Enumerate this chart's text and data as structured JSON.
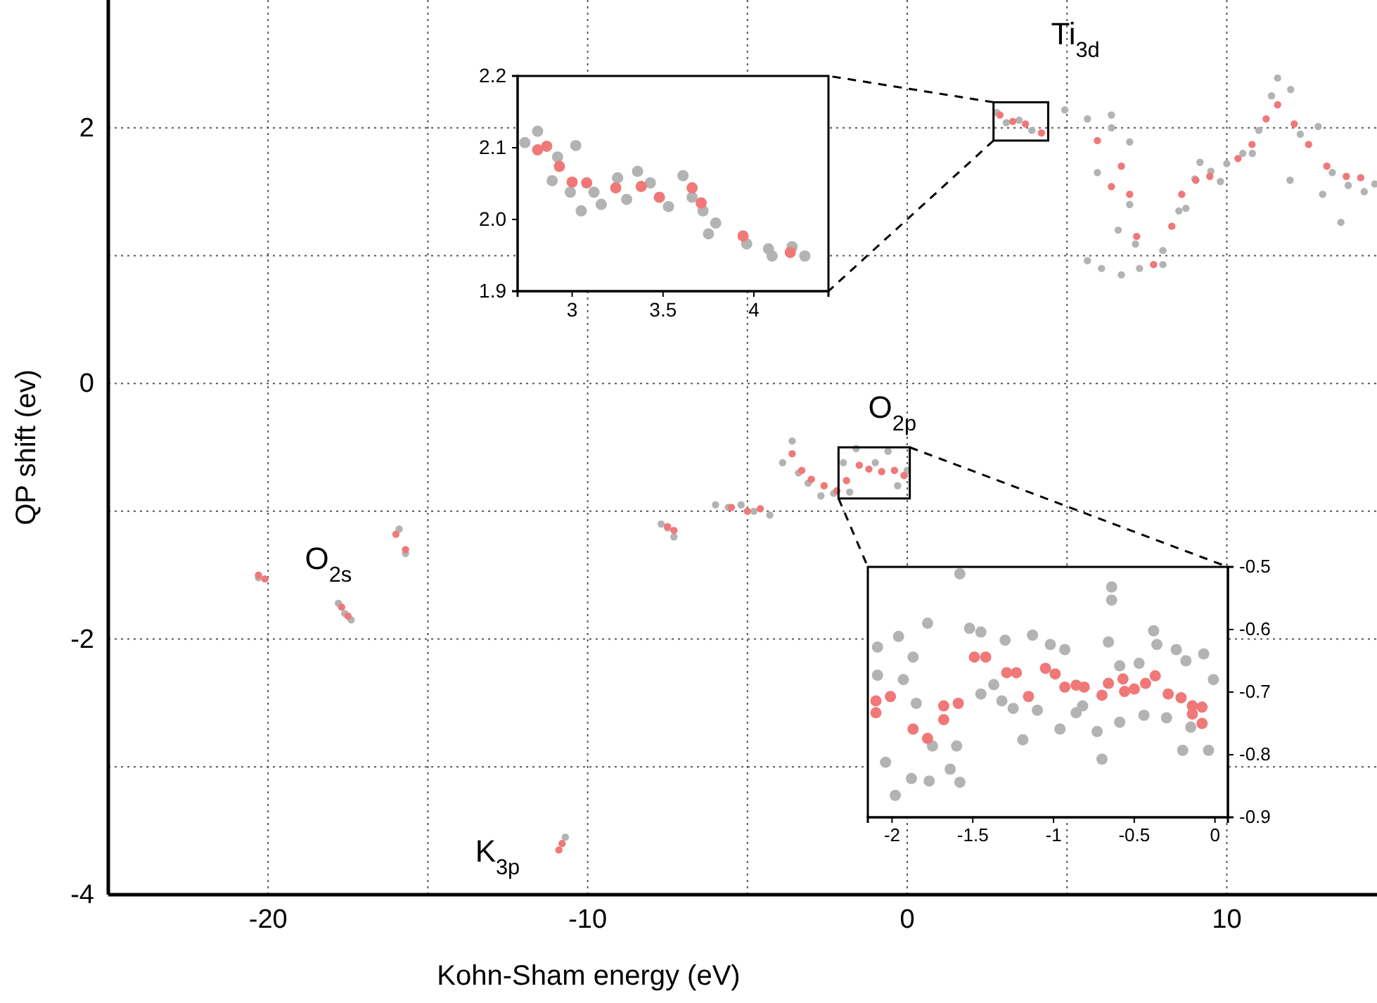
{
  "chart_data": [
    {
      "type": "scatter",
      "xlabel": "Kohn-Sham energy (eV)",
      "ylabel": "QP shift (ev)",
      "xlim": [
        -25,
        14.7
      ],
      "ylim": [
        -4,
        3
      ],
      "xticks": [
        -20,
        {
          "value": -15,
          "label": null
        },
        -10,
        {
          "value": -5,
          "label": null
        },
        0,
        {
          "value": 5,
          "label": null
        },
        10
      ],
      "yticks": [
        -4,
        {
          "value": -3,
          "label": null
        },
        -2,
        {
          "value": -1,
          "label": null
        },
        0,
        {
          "value": 1,
          "label": null
        },
        2
      ],
      "grid": true,
      "marker": "circle",
      "annotations": [
        {
          "text": "O$_{2s}$",
          "x": -17.6,
          "y": -1.78
        },
        {
          "text": "K$_{3p}$",
          "x": -10.8,
          "y": -3.63
        },
        {
          "text": "O$_{2p}$",
          "x": -1.0,
          "y": -0.6
        },
        {
          "text": "Ti$_{3d}$",
          "x": 3.5,
          "y": 2.05
        }
      ],
      "series": [
        {
          "color": "#b3b3b3",
          "x": [
            -20.3,
            -17.8,
            -17.6,
            -17.4,
            -15.9,
            -15.7,
            -10.7,
            -7.7,
            -7.5,
            -7.3,
            -6.0,
            -5.6,
            -5.2,
            -4.8,
            -4.3,
            -3.9,
            -3.6,
            -3.4,
            -3.1,
            -2.7,
            -2.3,
            -2.0,
            -1.8,
            -1.6,
            -1.0,
            -0.6,
            -0.3,
            0.0,
            2.8,
            3.1,
            3.5,
            3.9,
            4.93,
            5.64,
            6.39,
            6.96,
            6.96,
            6.6,
            7.14,
            5.64,
            6.08,
            6.7,
            7.27,
            8.0,
            8.5,
            9.0,
            9.5,
            10.0,
            10.5,
            11.0,
            11.59,
            11.4,
            12.3,
            12.86,
            13.3,
            13.8,
            14.3,
            14.63,
            13.57,
            13.0,
            11.98,
            9.16,
            8.72,
            8.0,
            5.95,
            6.39,
            9.8,
            10.8,
            12.0
          ],
          "values": [
            -1.52,
            -1.72,
            -1.8,
            -1.85,
            -1.14,
            -1.33,
            -3.55,
            -1.1,
            -1.13,
            -1.2,
            -0.95,
            -0.97,
            -0.95,
            -1.0,
            -1.03,
            -0.62,
            -0.45,
            -0.7,
            -0.78,
            -0.88,
            -0.86,
            -0.62,
            -0.85,
            -0.51,
            -0.62,
            -0.53,
            -0.8,
            -0.68,
            2.12,
            2.04,
            2.06,
            1.98,
            2.14,
            2.07,
            2.0,
            1.89,
            1.4,
            1.2,
            1.09,
            0.96,
            0.9,
            0.85,
            0.9,
            1.04,
            1.35,
            1.6,
            1.66,
            1.72,
            1.8,
            1.98,
            2.39,
            2.25,
            1.95,
            2.01,
            1.65,
            1.55,
            1.5,
            1.56,
            1.26,
            1.48,
            1.59,
            1.73,
            1.37,
            0.93,
            1.65,
            2.1,
            1.58,
            1.8,
            2.3
          ]
        },
        {
          "color": "#f07878",
          "x": [
            -20.3,
            -20.1,
            -17.7,
            -17.5,
            -16.0,
            -15.7,
            -10.9,
            -10.8,
            -7.5,
            -7.3,
            -5.5,
            -5.0,
            -4.6,
            -3.6,
            -3.3,
            -3.0,
            -2.6,
            -2.2,
            -1.9,
            -1.5,
            -1.2,
            -0.8,
            -0.4,
            -0.1,
            2.9,
            3.3,
            3.7,
            4.2,
            5.95,
            6.7,
            6.39,
            6.96,
            7.18,
            7.71,
            8.28,
            8.59,
            9.03,
            9.47,
            10.35,
            10.79,
            11.23,
            11.59,
            12.11,
            12.56,
            13.13,
            13.74,
            14.19
          ],
          "values": [
            -1.5,
            -1.53,
            -1.75,
            -1.82,
            -1.18,
            -1.3,
            -3.65,
            -3.6,
            -1.12,
            -1.15,
            -0.97,
            -1.0,
            -0.98,
            -0.55,
            -0.68,
            -0.75,
            -0.8,
            -0.84,
            -0.76,
            -0.64,
            -0.67,
            -0.69,
            -0.68,
            -0.72,
            2.1,
            2.05,
            2.03,
            1.96,
            1.9,
            1.7,
            1.54,
            1.48,
            1.15,
            0.93,
            1.23,
            1.48,
            1.59,
            1.62,
            1.76,
            1.87,
            2.07,
            2.18,
            2.03,
            1.87,
            1.7,
            1.62,
            1.61
          ]
        }
      ]
    },
    {
      "type": "scatter",
      "xlim": [
        2.7,
        4.41
      ],
      "ylim": [
        1.9,
        2.2
      ],
      "xticks": [
        3,
        3.5,
        4
      ],
      "yticks": [
        1.9,
        {
          "value": 2.0,
          "label": "2.0"
        },
        2.1,
        2.2
      ],
      "marker": "circle",
      "series": [
        {
          "color": "#b3b3b3",
          "x": [
            2.74,
            2.81,
            2.92,
            2.99,
            3.02,
            3.05,
            3.12,
            3.16,
            2.89,
            3.25,
            3.36,
            3.3,
            3.43,
            3.53,
            3.61,
            3.66,
            3.72,
            3.79,
            3.75,
            3.96,
            4.08,
            4.21,
            4.28,
            4.1
          ],
          "values": [
            2.107,
            2.123,
            2.087,
            2.038,
            2.103,
            2.012,
            2.038,
            2.021,
            2.054,
            2.058,
            2.067,
            2.028,
            2.051,
            2.018,
            2.061,
            2.031,
            2.012,
            1.995,
            1.98,
            1.966,
            1.959,
            1.962,
            1.949,
            1.949
          ]
        },
        {
          "color": "#f07878",
          "x": [
            2.81,
            2.86,
            2.93,
            3.0,
            3.08,
            3.24,
            3.38,
            3.48,
            3.66,
            3.71,
            3.94,
            4.2
          ],
          "values": [
            2.097,
            2.102,
            2.074,
            2.052,
            2.051,
            2.044,
            2.046,
            2.031,
            2.044,
            2.023,
            1.977,
            1.954
          ]
        }
      ]
    },
    {
      "type": "scatter",
      "xlim": [
        -2.15,
        0.08
      ],
      "ylim": [
        -0.9,
        -0.5
      ],
      "xticks": [
        -2,
        -1.5,
        -1,
        -0.5,
        0
      ],
      "yticks": [
        -0.9,
        -0.8,
        -0.7,
        -0.6,
        -0.5
      ],
      "marker": "circle",
      "series": [
        {
          "color": "#b3b3b3",
          "x": [
            -1.58,
            -0.64,
            -1.78,
            -1.96,
            -2.09,
            -2.09,
            -1.93,
            -1.87,
            -2.04,
            -1.98,
            -1.88,
            -1.77,
            -1.64,
            -1.58,
            -1.85,
            -1.75,
            -1.6,
            -1.52,
            -1.45,
            -1.3,
            -1.13,
            -1.02,
            -0.93,
            -1.19,
            -1.25,
            -1.1,
            -0.96,
            -0.86,
            -0.73,
            -0.7,
            -0.64,
            -0.66,
            -0.59,
            -0.47,
            -0.38,
            -0.36,
            -0.24,
            -0.18,
            -0.07,
            -0.01,
            -0.04,
            -0.2,
            -0.15,
            -0.3,
            -0.44,
            -0.59,
            -0.82,
            -1.37,
            -1.45,
            -1.32
          ],
          "values": [
            -0.511,
            -0.532,
            -0.59,
            -0.611,
            -0.628,
            -0.673,
            -0.68,
            -0.644,
            -0.812,
            -0.865,
            -0.838,
            -0.842,
            -0.823,
            -0.844,
            -0.718,
            -0.786,
            -0.786,
            -0.598,
            -0.604,
            -0.617,
            -0.609,
            -0.624,
            -0.632,
            -0.776,
            -0.726,
            -0.729,
            -0.759,
            -0.733,
            -0.763,
            -0.807,
            -0.553,
            -0.62,
            -0.658,
            -0.654,
            -0.602,
            -0.624,
            -0.632,
            -0.65,
            -0.639,
            -0.68,
            -0.793,
            -0.793,
            -0.756,
            -0.741,
            -0.737,
            -0.748,
            -0.722,
            -0.688,
            -0.703,
            -0.714
          ]
        },
        {
          "color": "#f07878",
          "x": [
            -2.1,
            -2.1,
            -2.01,
            -1.87,
            -1.78,
            -1.68,
            -1.68,
            -1.59,
            -1.49,
            -1.42,
            -1.29,
            -1.23,
            -1.155,
            -1.05,
            -0.99,
            -0.93,
            -0.86,
            -0.81,
            -0.7,
            -0.66,
            -0.57,
            -0.56,
            -0.5,
            -0.43,
            -0.37,
            -0.29,
            -0.21,
            -0.14,
            -0.14,
            -0.08,
            -0.08
          ],
          "values": [
            -0.714,
            -0.733,
            -0.707,
            -0.759,
            -0.774,
            -0.722,
            -0.744,
            -0.718,
            -0.644,
            -0.644,
            -0.669,
            -0.669,
            -0.707,
            -0.662,
            -0.671,
            -0.692,
            -0.689,
            -0.692,
            -0.705,
            -0.686,
            -0.679,
            -0.699,
            -0.695,
            -0.686,
            -0.674,
            -0.703,
            -0.709,
            -0.722,
            -0.735,
            -0.724,
            -0.75
          ]
        }
      ]
    }
  ]
}
